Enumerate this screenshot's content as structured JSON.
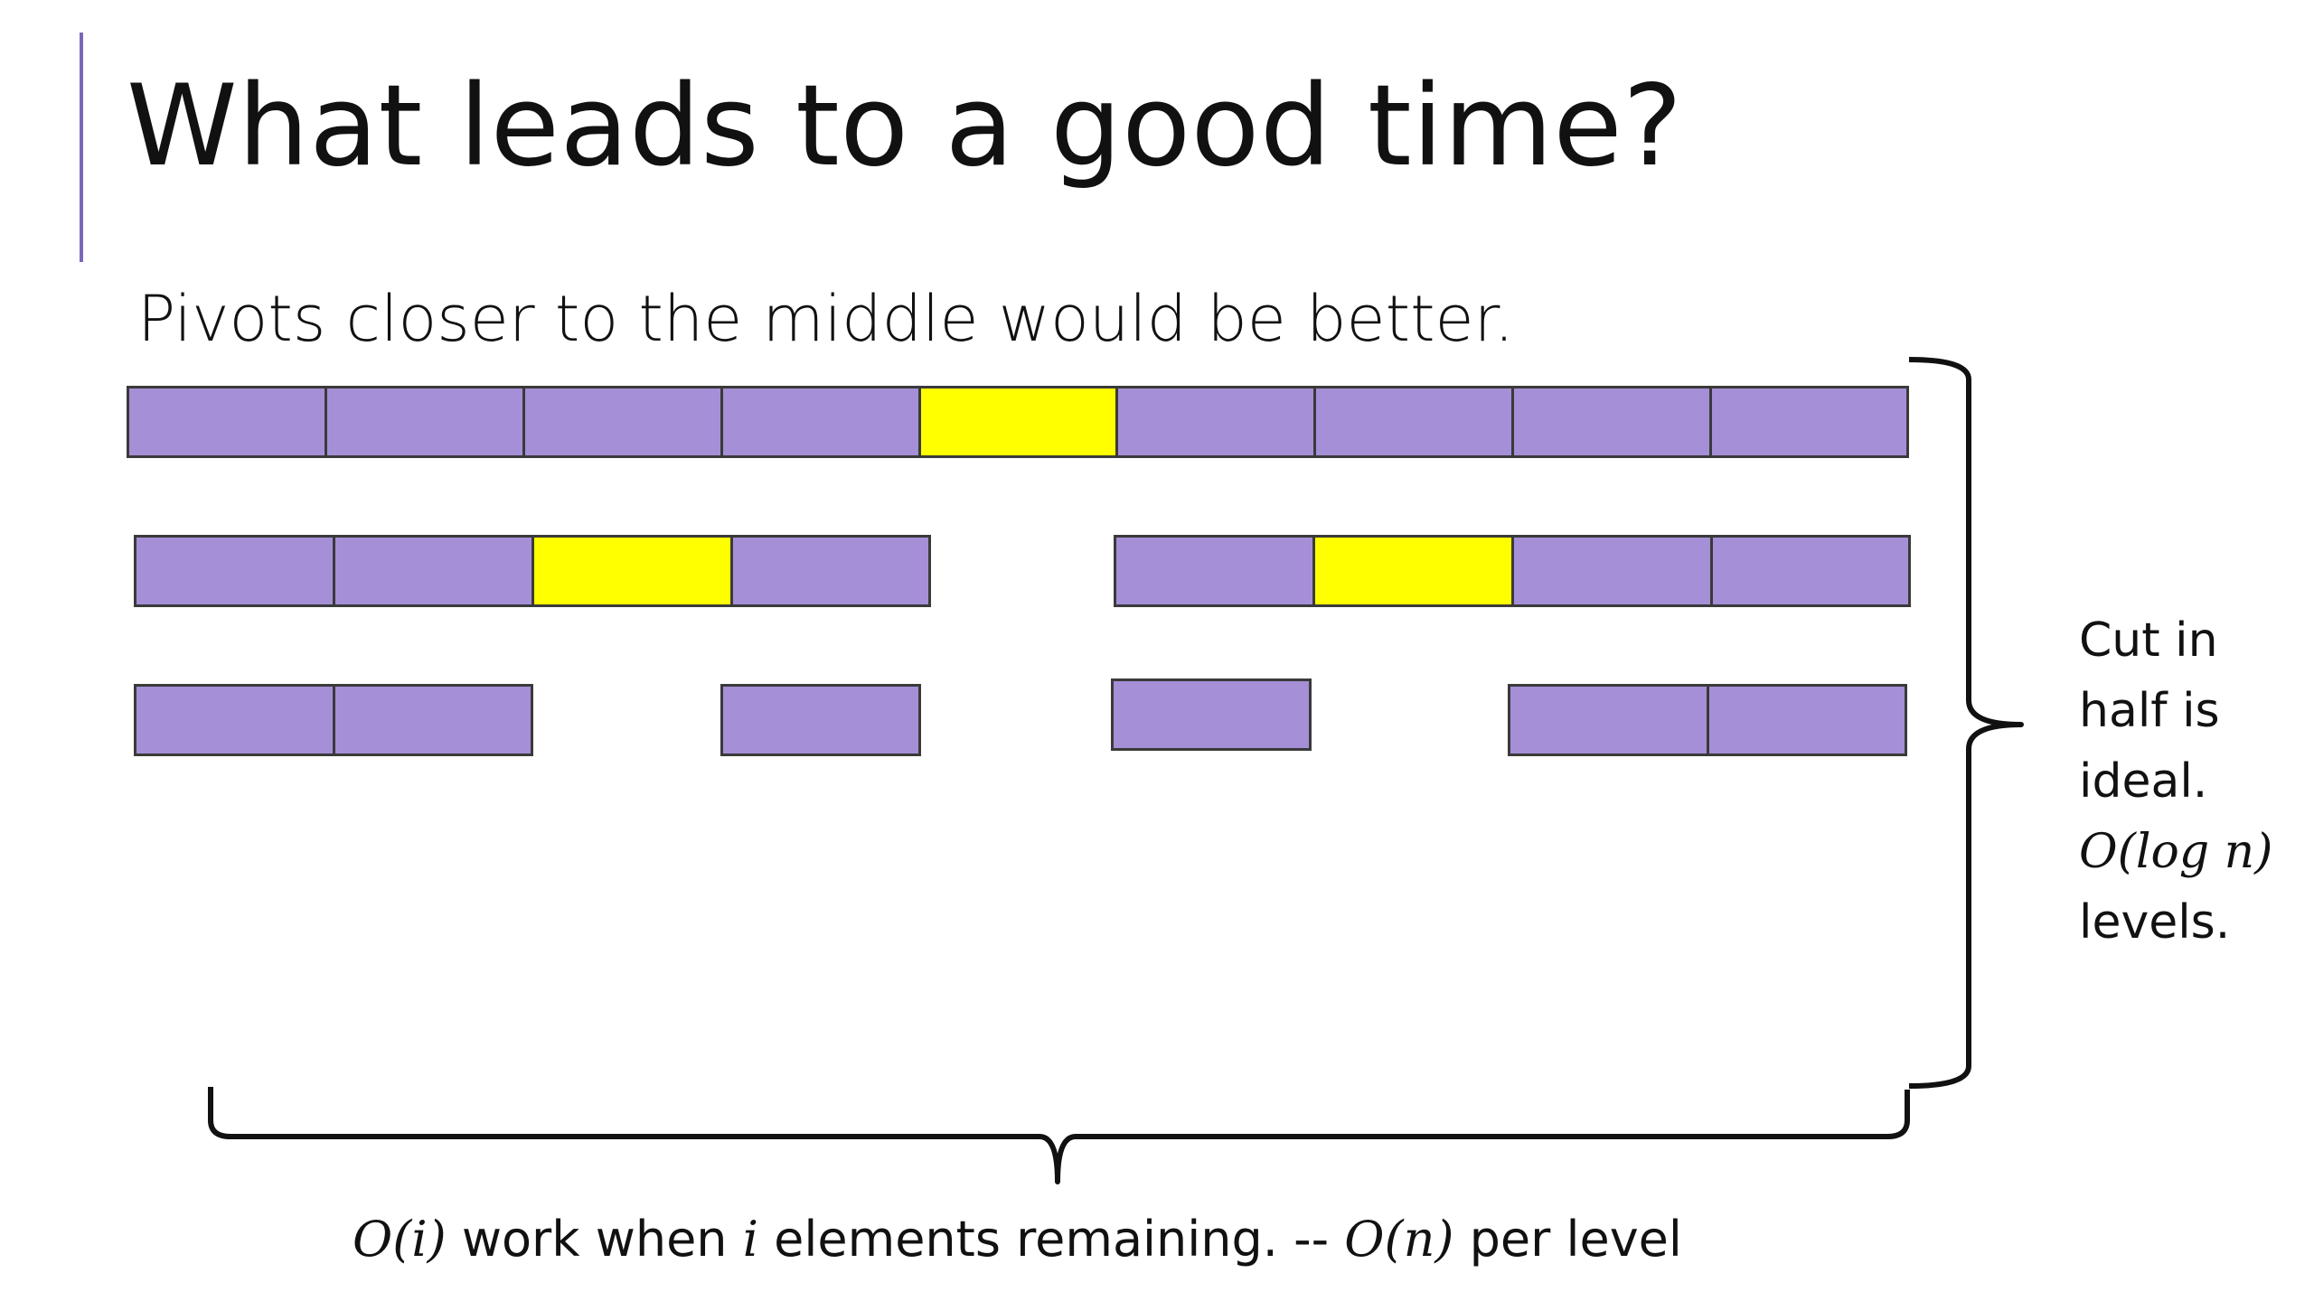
{
  "title": "What leads to a good time?",
  "subtitle": "Pivots closer to the middle would be better.",
  "colors": {
    "element": "#a58fd6",
    "pivot": "#ffff00",
    "accent": "#7b68b8"
  },
  "levels": [
    {
      "groups": [
        {
          "cells": [
            "element",
            "element",
            "element",
            "element",
            "pivot",
            "element",
            "element",
            "element",
            "element"
          ]
        }
      ]
    },
    {
      "groups": [
        {
          "cells": [
            "element",
            "element",
            "pivot",
            "element"
          ]
        },
        {
          "cells": [
            "element",
            "pivot",
            "element",
            "element"
          ]
        }
      ]
    },
    {
      "groups": [
        {
          "cells": [
            "element",
            "element"
          ]
        },
        {
          "cells": [
            "element"
          ]
        },
        {
          "cells": [
            "element"
          ]
        },
        {
          "cells": [
            "element",
            "element"
          ]
        }
      ]
    }
  ],
  "side_note": {
    "line1": "Cut in",
    "line2": "half is",
    "line3": "ideal.",
    "math": "O(log n)",
    "line5": "levels."
  },
  "bottom_note": {
    "math1": "O(i)",
    "text1": " work when ",
    "math2": "i",
    "text2": " elements remaining. -- ",
    "math3": "O(n)",
    "text3": " per level"
  }
}
